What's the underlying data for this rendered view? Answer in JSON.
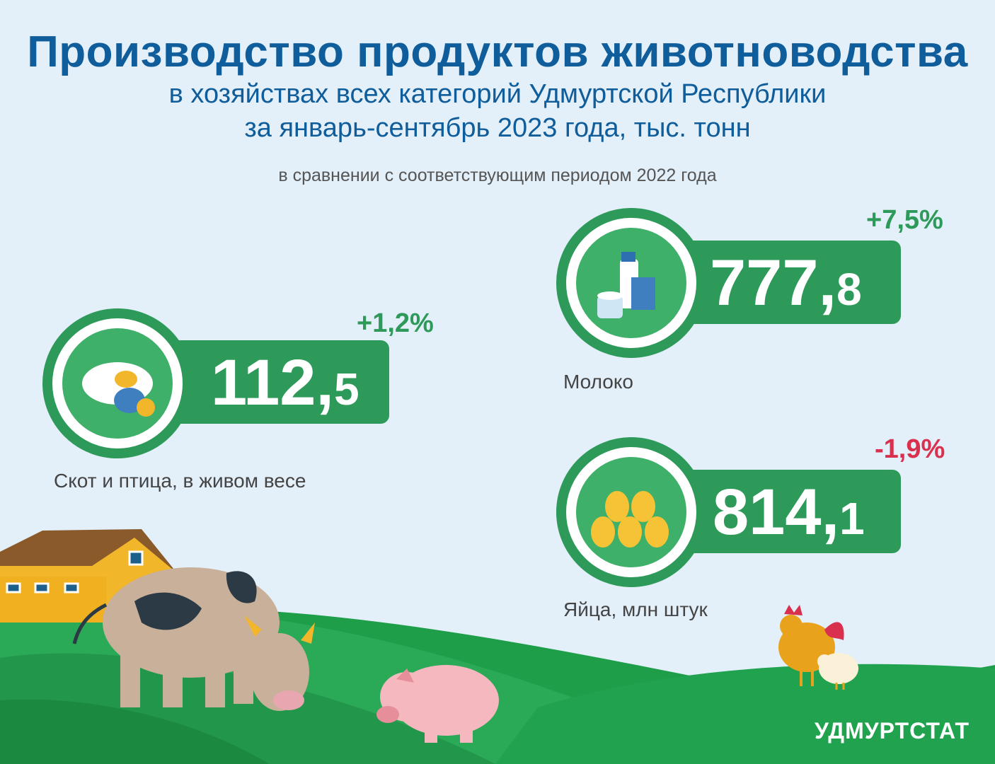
{
  "header": {
    "title": "Производство продуктов животноводства",
    "subtitle_line1": "в хозяйствах всех категорий Удмуртской Республики",
    "subtitle_line2": "за январь-сентябрь 2023 года, тыс. тонн",
    "comparison_note": "в сравнении с соответствующим периодом 2022 года"
  },
  "indicators": [
    {
      "id": "livestock",
      "label": "Скот и птица, в живом весе",
      "value_int": "112,",
      "value_dec": "5",
      "change": "+1,2%",
      "icon": "farm-animals-icon"
    },
    {
      "id": "milk",
      "label": "Молоко",
      "value_int": "777,",
      "value_dec": "8",
      "change": "+7,5%",
      "icon": "dairy-products-icon"
    },
    {
      "id": "eggs",
      "label": "Яйца, млн штук",
      "value_int": "814,",
      "value_dec": "1",
      "change": "-1,9%",
      "icon": "eggs-icon"
    }
  ],
  "footer": {
    "brand": "УДМУРТСТАТ"
  },
  "colors": {
    "title": "#0f5d9a",
    "green": "#2e9a5a",
    "positive": "#2e9a5a",
    "negative": "#d9304e",
    "background": "#e3eff9"
  }
}
